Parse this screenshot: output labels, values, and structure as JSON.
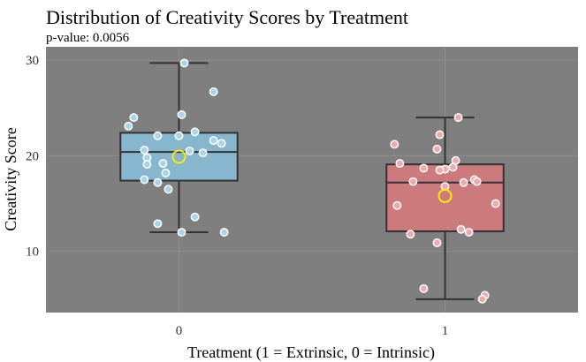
{
  "chart_data": {
    "type": "box",
    "title": "Distribution of Creativity Scores by Treatment",
    "subtitle": "p-value: 0.0056",
    "xlabel": "Treatment (1 = Extrinsic, 0 = Intrinsic)",
    "ylabel": "Creativity Score",
    "categories": [
      "0",
      "1"
    ],
    "ylim": [
      3.6,
      31.4
    ],
    "yticks": [
      10,
      20,
      30
    ],
    "grid": true,
    "colors": {
      "panel_background": "#7f7f7f",
      "grid": "#8e8e8e",
      "box_0_fill": "#87b7cf",
      "box_1_fill": "#cd7a7d",
      "box_outline": "#333333",
      "point_0": "#a9d5ea",
      "point_1": "#f0a9ad",
      "point_outline": "#ffffff",
      "mean_marker": "#ffea00"
    },
    "groups": [
      {
        "category": "0",
        "box": {
          "whisker_low": 12.0,
          "q1": 17.4,
          "median": 20.4,
          "q3": 22.4,
          "whisker_high": 29.7
        },
        "mean": 19.9,
        "points": [
          {
            "x": 0.02,
            "y": 29.7
          },
          {
            "x": 0.13,
            "y": 26.7
          },
          {
            "x": -0.17,
            "y": 24.0
          },
          {
            "x": 0.01,
            "y": 24.3
          },
          {
            "x": -0.19,
            "y": 23.1
          },
          {
            "x": 0.06,
            "y": 22.5
          },
          {
            "x": -0.08,
            "y": 22.1
          },
          {
            "x": 0.0,
            "y": 22.1
          },
          {
            "x": 0.13,
            "y": 21.6
          },
          {
            "x": 0.16,
            "y": 21.3
          },
          {
            "x": -0.13,
            "y": 20.6
          },
          {
            "x": 0.04,
            "y": 20.5
          },
          {
            "x": 0.09,
            "y": 20.3
          },
          {
            "x": -0.12,
            "y": 19.8
          },
          {
            "x": -0.06,
            "y": 19.2
          },
          {
            "x": -0.12,
            "y": 19.1
          },
          {
            "x": -0.05,
            "y": 18.2
          },
          {
            "x": -0.13,
            "y": 17.5
          },
          {
            "x": -0.08,
            "y": 17.2
          },
          {
            "x": -0.04,
            "y": 16.5
          },
          {
            "x": 0.06,
            "y": 13.6
          },
          {
            "x": -0.08,
            "y": 12.9
          },
          {
            "x": 0.01,
            "y": 12.0
          },
          {
            "x": 0.17,
            "y": 12.0
          }
        ]
      },
      {
        "category": "1",
        "box": {
          "whisker_low": 5.0,
          "q1": 12.1,
          "median": 17.2,
          "q3": 19.1,
          "whisker_high": 24.0
        },
        "mean": 15.8,
        "points": [
          {
            "x": 0.05,
            "y": 24.0
          },
          {
            "x": -0.02,
            "y": 22.2
          },
          {
            "x": -0.19,
            "y": 21.2
          },
          {
            "x": -0.03,
            "y": 20.7
          },
          {
            "x": -0.17,
            "y": 19.2
          },
          {
            "x": 0.04,
            "y": 19.5
          },
          {
            "x": -0.08,
            "y": 18.7
          },
          {
            "x": 0.0,
            "y": 18.6
          },
          {
            "x": 0.03,
            "y": 18.8
          },
          {
            "x": -0.02,
            "y": 18.5
          },
          {
            "x": 0.11,
            "y": 17.5
          },
          {
            "x": 0.12,
            "y": 17.3
          },
          {
            "x": 0.07,
            "y": 17.2
          },
          {
            "x": -0.12,
            "y": 17.3
          },
          {
            "x": 0.0,
            "y": 16.8
          },
          {
            "x": 0.19,
            "y": 15.0
          },
          {
            "x": -0.18,
            "y": 14.8
          },
          {
            "x": 0.06,
            "y": 12.3
          },
          {
            "x": 0.09,
            "y": 12.0
          },
          {
            "x": -0.13,
            "y": 11.8
          },
          {
            "x": -0.03,
            "y": 10.9
          },
          {
            "x": -0.08,
            "y": 6.1
          },
          {
            "x": 0.15,
            "y": 5.4
          },
          {
            "x": 0.14,
            "y": 5.0
          }
        ]
      }
    ]
  }
}
